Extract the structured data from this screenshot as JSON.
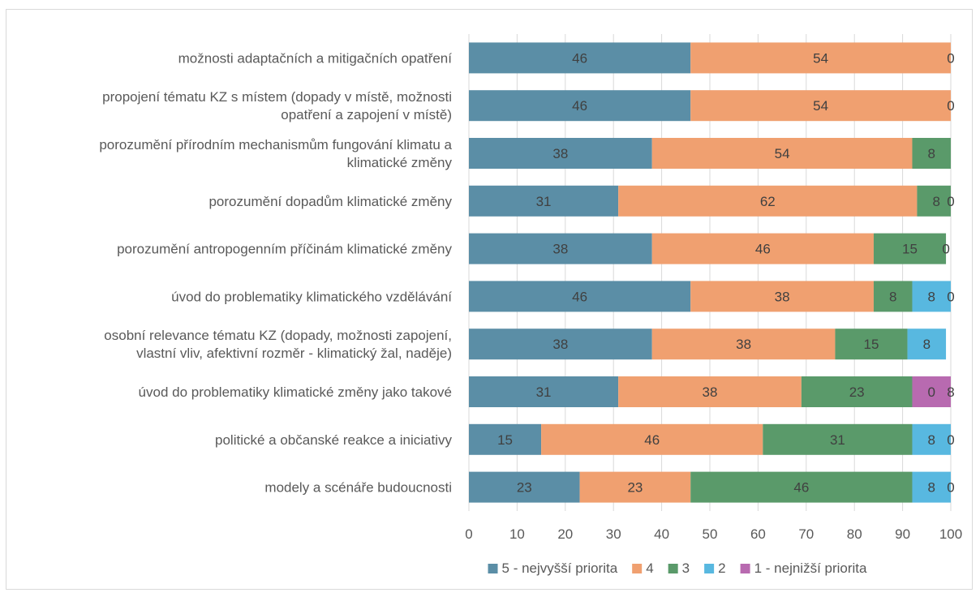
{
  "chart_data": {
    "type": "bar",
    "orientation": "horizontal",
    "stacked": true,
    "categories": [
      [
        "možnosti adaptačních a mitigačních opatření"
      ],
      [
        "propojení tématu KZ s místem (dopady v místě, možnosti",
        "opatření a zapojení v místě)"
      ],
      [
        "porozumění přírodním mechanismům fungování klimatu a",
        "klimatické změny"
      ],
      [
        "porozumění dopadům klimatické změny"
      ],
      [
        "porozumění antropogenním příčinám klimatické změny"
      ],
      [
        "úvod do problematiky klimatického vzdělávání"
      ],
      [
        "osobní relevance tématu KZ (dopady, možnosti zapojení,",
        "vlastní vliv, afektivní rozměr - klimatický žal, naděje)"
      ],
      [
        "úvod do problematiky klimatické změny jako takové"
      ],
      [
        "politické a občanské reakce a iniciativy"
      ],
      [
        "modely a scénáře budoucnosti"
      ]
    ],
    "series": [
      {
        "name": "5 - nejvyšší priorita",
        "color": "#5b8ea6",
        "values": [
          46,
          46,
          38,
          31,
          38,
          46,
          38,
          31,
          15,
          23
        ]
      },
      {
        "name": "4",
        "color": "#f0a070",
        "values": [
          54,
          54,
          54,
          62,
          46,
          38,
          38,
          38,
          46,
          23
        ]
      },
      {
        "name": "3",
        "color": "#5a9a6a",
        "values": [
          0,
          0,
          8,
          8,
          15,
          8,
          15,
          23,
          31,
          46
        ]
      },
      {
        "name": "2",
        "color": "#58b8e0",
        "values": [
          0,
          0,
          0,
          0,
          0,
          8,
          8,
          0,
          8,
          8
        ]
      },
      {
        "name": "1 - nejnižší priorita",
        "color": "#b86ab0",
        "values": [
          0,
          0,
          0,
          0,
          0,
          0,
          0,
          8,
          0,
          0
        ]
      }
    ],
    "data_labels": [
      {
        "row": 0,
        "labels": [
          "46",
          "54",
          "0"
        ]
      },
      {
        "row": 1,
        "labels": [
          "46",
          "54",
          "0"
        ]
      },
      {
        "row": 2,
        "labels": [
          "38",
          "54",
          "8"
        ]
      },
      {
        "row": 3,
        "labels": [
          "31",
          "62",
          "8",
          "0"
        ]
      },
      {
        "row": 4,
        "labels": [
          "38",
          "46",
          "15",
          "0"
        ]
      },
      {
        "row": 5,
        "labels": [
          "46",
          "38",
          "8",
          "8",
          "0"
        ]
      },
      {
        "row": 6,
        "labels": [
          "38",
          "38",
          "15",
          "8"
        ]
      },
      {
        "row": 7,
        "labels": [
          "31",
          "38",
          "23",
          "0",
          "8"
        ]
      },
      {
        "row": 8,
        "labels": [
          "15",
          "46",
          "31",
          "8",
          "0"
        ]
      },
      {
        "row": 9,
        "labels": [
          "23",
          "23",
          "46",
          "8",
          "0"
        ]
      }
    ],
    "xlim": [
      0,
      100
    ],
    "xticks": [
      "0",
      "10",
      "20",
      "30",
      "40",
      "50",
      "60",
      "70",
      "80",
      "90",
      "100"
    ],
    "grid": "vertical",
    "legend": "bottom"
  }
}
